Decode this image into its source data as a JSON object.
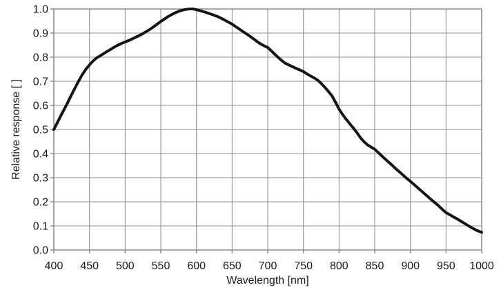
{
  "chart_data": {
    "type": "line",
    "title": "",
    "xlabel": "Wavelength [nm]",
    "ylabel": "Relative response [ ]",
    "xlim": [
      400,
      1000
    ],
    "ylim": [
      0.0,
      1.0
    ],
    "grid": true,
    "legend": false,
    "x_ticks": {
      "values": [
        400,
        450,
        500,
        550,
        600,
        650,
        700,
        750,
        800,
        850,
        900,
        950,
        1000
      ],
      "labels": [
        "400",
        "450",
        "500",
        "550",
        "600",
        "650",
        "700",
        "750",
        "800",
        "850",
        "900",
        "950",
        "1000"
      ]
    },
    "y_ticks": {
      "values": [
        0.0,
        0.1,
        0.2,
        0.3,
        0.4,
        0.5,
        0.6,
        0.7,
        0.8,
        0.9,
        1.0
      ],
      "labels": [
        "0.0",
        "0.1",
        "0.2",
        "0.3",
        "0.4",
        "0.5",
        "0.6",
        "0.7",
        "0.8",
        "0.9",
        "1.0"
      ]
    },
    "series": [
      {
        "name": "relative-response",
        "color": "#141414",
        "line_width": 4,
        "points": [
          [
            400,
            0.5
          ],
          [
            405,
            0.529
          ],
          [
            410,
            0.558
          ],
          [
            415,
            0.586
          ],
          [
            420,
            0.615
          ],
          [
            425,
            0.645
          ],
          [
            430,
            0.674
          ],
          [
            435,
            0.702
          ],
          [
            440,
            0.728
          ],
          [
            445,
            0.75
          ],
          [
            450,
            0.768
          ],
          [
            455,
            0.784
          ],
          [
            460,
            0.797
          ],
          [
            465,
            0.806
          ],
          [
            470,
            0.815
          ],
          [
            475,
            0.824
          ],
          [
            480,
            0.833
          ],
          [
            485,
            0.842
          ],
          [
            490,
            0.85
          ],
          [
            495,
            0.857
          ],
          [
            500,
            0.863
          ],
          [
            505,
            0.869
          ],
          [
            510,
            0.876
          ],
          [
            515,
            0.883
          ],
          [
            520,
            0.89
          ],
          [
            525,
            0.898
          ],
          [
            530,
            0.907
          ],
          [
            535,
            0.916
          ],
          [
            540,
            0.926
          ],
          [
            545,
            0.937
          ],
          [
            550,
            0.948
          ],
          [
            555,
            0.958
          ],
          [
            560,
            0.968
          ],
          [
            565,
            0.976
          ],
          [
            570,
            0.984
          ],
          [
            575,
            0.99
          ],
          [
            580,
            0.995
          ],
          [
            585,
            0.998
          ],
          [
            590,
            1.0
          ],
          [
            595,
            1.0
          ],
          [
            600,
            0.997
          ],
          [
            605,
            0.993
          ],
          [
            610,
            0.989
          ],
          [
            615,
            0.984
          ],
          [
            620,
            0.979
          ],
          [
            625,
            0.974
          ],
          [
            630,
            0.968
          ],
          [
            635,
            0.961
          ],
          [
            640,
            0.953
          ],
          [
            645,
            0.945
          ],
          [
            650,
            0.937
          ],
          [
            655,
            0.927
          ],
          [
            660,
            0.917
          ],
          [
            665,
            0.907
          ],
          [
            670,
            0.897
          ],
          [
            675,
            0.887
          ],
          [
            680,
            0.876
          ],
          [
            685,
            0.865
          ],
          [
            690,
            0.855
          ],
          [
            695,
            0.847
          ],
          [
            700,
            0.84
          ],
          [
            705,
            0.826
          ],
          [
            710,
            0.812
          ],
          [
            715,
            0.798
          ],
          [
            720,
            0.785
          ],
          [
            725,
            0.774
          ],
          [
            730,
            0.767
          ],
          [
            735,
            0.76
          ],
          [
            740,
            0.753
          ],
          [
            745,
            0.747
          ],
          [
            750,
            0.74
          ],
          [
            755,
            0.731
          ],
          [
            760,
            0.722
          ],
          [
            765,
            0.714
          ],
          [
            770,
            0.705
          ],
          [
            775,
            0.691
          ],
          [
            780,
            0.675
          ],
          [
            785,
            0.658
          ],
          [
            790,
            0.64
          ],
          [
            795,
            0.613
          ],
          [
            800,
            0.585
          ],
          [
            805,
            0.562
          ],
          [
            810,
            0.542
          ],
          [
            815,
            0.524
          ],
          [
            820,
            0.506
          ],
          [
            825,
            0.487
          ],
          [
            830,
            0.466
          ],
          [
            835,
            0.449
          ],
          [
            840,
            0.436
          ],
          [
            845,
            0.427
          ],
          [
            850,
            0.418
          ],
          [
            855,
            0.404
          ],
          [
            860,
            0.39
          ],
          [
            865,
            0.377
          ],
          [
            870,
            0.363
          ],
          [
            875,
            0.35
          ],
          [
            880,
            0.336
          ],
          [
            885,
            0.323
          ],
          [
            890,
            0.31
          ],
          [
            895,
            0.297
          ],
          [
            900,
            0.285
          ],
          [
            905,
            0.272
          ],
          [
            910,
            0.259
          ],
          [
            915,
            0.246
          ],
          [
            920,
            0.233
          ],
          [
            925,
            0.22
          ],
          [
            930,
            0.207
          ],
          [
            935,
            0.195
          ],
          [
            940,
            0.182
          ],
          [
            945,
            0.168
          ],
          [
            950,
            0.155
          ],
          [
            955,
            0.147
          ],
          [
            960,
            0.138
          ],
          [
            965,
            0.13
          ],
          [
            970,
            0.121
          ],
          [
            975,
            0.112
          ],
          [
            980,
            0.103
          ],
          [
            985,
            0.094
          ],
          [
            990,
            0.086
          ],
          [
            995,
            0.079
          ],
          [
            1000,
            0.073
          ]
        ]
      }
    ],
    "style": {
      "background": "#ffffff",
      "grid_color": "#8c8c8c",
      "frame_color": "#8c8c8c",
      "tick_color": "#8c8c8c",
      "text_color": "#1a1a1a",
      "curve_color": "#141414"
    }
  }
}
